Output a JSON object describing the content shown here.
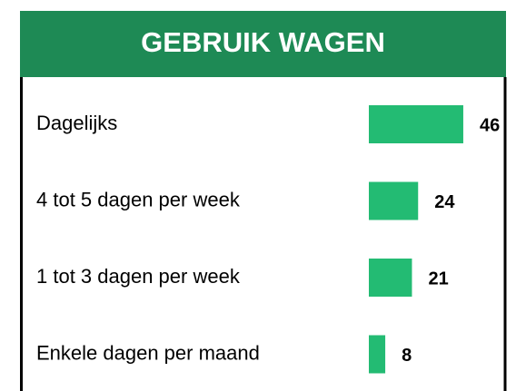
{
  "chart_data": {
    "type": "bar",
    "orientation": "horizontal",
    "title": "GEBRUIK WAGEN",
    "categories": [
      "Dagelijks",
      "4 tot 5 dagen per week",
      "1 tot 3 dagen per week",
      "Enkele dagen per maand"
    ],
    "values": [
      46,
      24,
      21,
      8
    ],
    "color": "#23bb73",
    "header_color": "#1e8a55"
  }
}
